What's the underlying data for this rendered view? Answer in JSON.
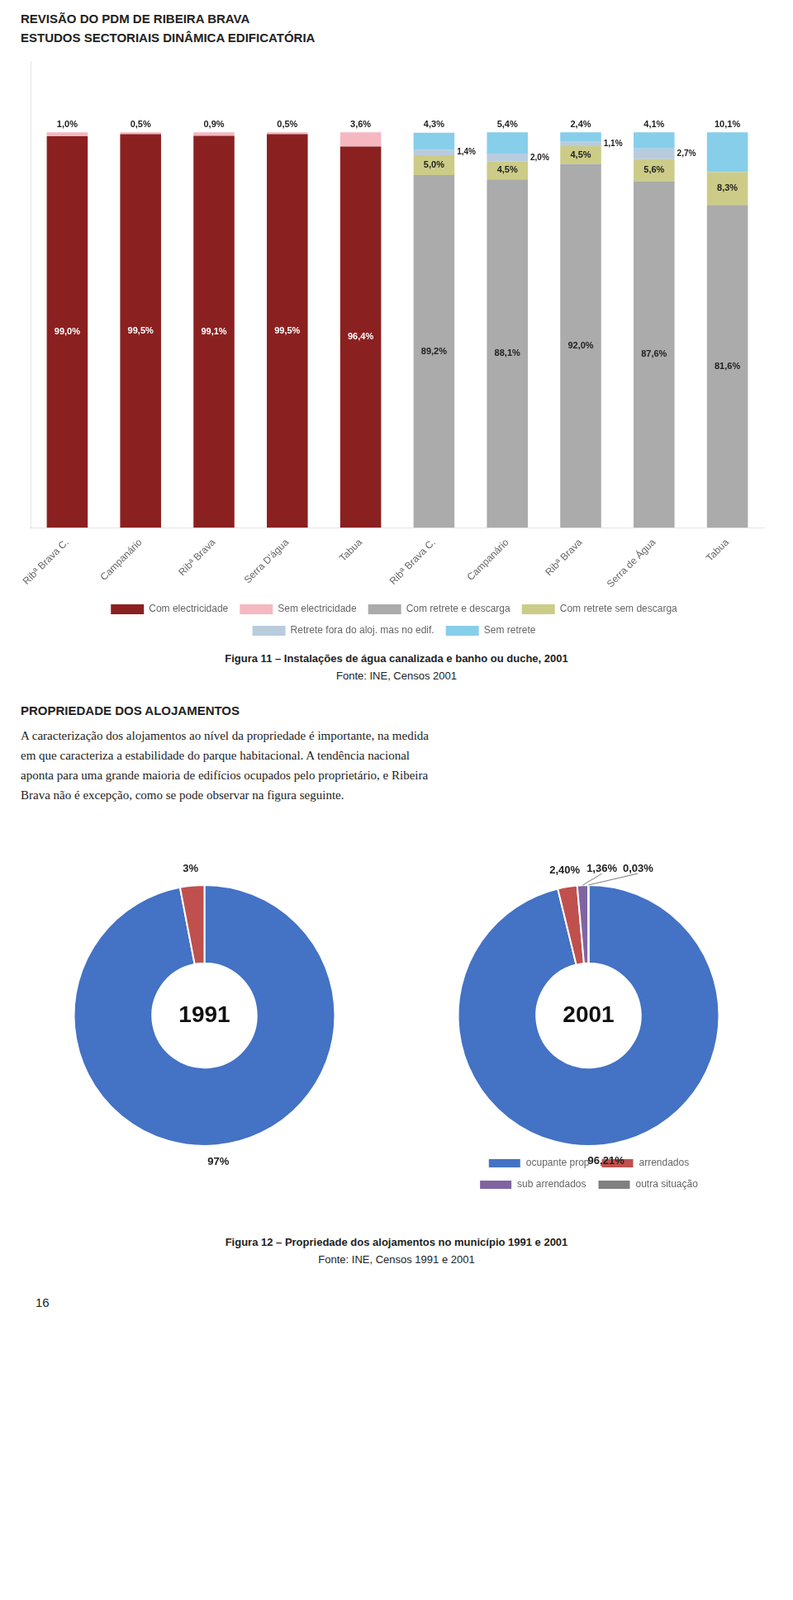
{
  "title": "REVISÃO DO PDM DE RIBEIRA BRAVA",
  "subtitle": "ESTUDOS SECTORIAIS DINÂMICA EDIFICATÓRIA",
  "annotations": [
    "PROPRIEDADE DOS ALOJAMENTOS",
    "A caracterização dos alojamentos ao nível da propriedade é importante, na medida",
    "em que caracteriza a estabilidade do parque habitacional. A tendência nacional",
    "aponta para uma grande maioria de edifícios ocupados pelo proprietário, e Ribeira",
    "Brava não é excepção, como se pode observar na figura seguinte.",
    "16"
  ],
  "chart_data": [
    {
      "type": "bar",
      "title": "Figura 11 – Instalações de água canalizada e banho ou duche, 2001",
      "subtitle": "Fonte: INE, Censos 2001",
      "categories": [
        "Ribª Brava C.",
        "Campanário",
        "Ribª Brava",
        "Serra D'água",
        "Tabua",
        "Ribª Brava C.",
        "Campanário",
        "Ribª Brava",
        "Serra de Água",
        "Tabua"
      ],
      "series": [
        {
          "name": "Com electricidade",
          "color": "#8B2020",
          "values": [
            99.0,
            99.5,
            99.1,
            99.5,
            96.4,
            null,
            null,
            null,
            null,
            null
          ],
          "value_labels": [
            "99,0%",
            "99,5%",
            "99,1%",
            "99,5%",
            "96,4%",
            null,
            null,
            null,
            null,
            null
          ]
        },
        {
          "name": "Sem electricidade",
          "color": "#F5B8C0",
          "values": [
            1.0,
            0.5,
            0.9,
            0.5,
            3.6,
            null,
            null,
            null,
            null,
            null
          ],
          "value_labels": [
            "1,0%",
            "0,5%",
            "0,9%",
            "0,5%",
            "3,6%",
            null,
            null,
            null,
            null,
            null
          ]
        },
        {
          "name": "Com retrete e descarga",
          "color": "#ABABAB",
          "values": [
            null,
            null,
            null,
            null,
            null,
            89.2,
            88.1,
            92.0,
            87.6,
            81.6
          ],
          "value_labels": [
            null,
            null,
            null,
            null,
            null,
            "89,2%",
            "88,1%",
            "92,0%",
            "87,6%",
            "81,6%"
          ]
        },
        {
          "name": "Com retrete sem descarga",
          "color": "#CCCC88",
          "values": [
            null,
            null,
            null,
            null,
            null,
            5.0,
            4.5,
            4.5,
            5.6,
            8.3
          ],
          "value_labels": [
            null,
            null,
            null,
            null,
            null,
            "5,0%",
            "4,5%",
            "4,5%",
            "5,6%",
            "8,3%"
          ]
        },
        {
          "name": "Retrete fora do aloj. mas no edif.",
          "color": "#B8CCDD",
          "values": [
            null,
            null,
            null,
            null,
            null,
            1.4,
            2.0,
            1.1,
            2.7,
            0.0
          ],
          "value_labels": [
            null,
            null,
            null,
            null,
            null,
            "1,4%",
            "2,0%",
            "1,1%",
            "2,7%",
            null
          ]
        },
        {
          "name": "Sem retrete",
          "color": "#87CEEB",
          "values": [
            null,
            null,
            null,
            null,
            null,
            4.3,
            5.4,
            2.4,
            4.1,
            10.1
          ],
          "value_labels": [
            null,
            null,
            null,
            null,
            null,
            "4,3%",
            "5,4%",
            "2,4%",
            "4,1%",
            "10,1%"
          ]
        }
      ],
      "stacked": true,
      "data_labels": true,
      "legend": "bottom",
      "grid": false,
      "tick_labels": "x",
      "ylim": [
        0,
        118
      ],
      "yticks": []
    },
    {
      "type": "doughnut",
      "title": "1991",
      "categories": [
        "ocupante prop",
        "arrendados"
      ],
      "values": [
        97.0,
        3.0
      ],
      "value_labels": [
        "97%",
        "3%"
      ],
      "colors": [
        "#4472C4",
        "#C0504D"
      ],
      "data_labels": true
    },
    {
      "type": "doughnut",
      "title": "2001",
      "categories": [
        "ocupante prop",
        "arrendados",
        "sub arrendados",
        "outra situação"
      ],
      "values": [
        96.21,
        2.4,
        1.36,
        0.03
      ],
      "value_labels": [
        "96,21%",
        "2,40%",
        "1,36%",
        "0,03%"
      ],
      "colors": [
        "#4472C4",
        "#C0504D",
        "#8064A2",
        "#808080"
      ],
      "data_labels": true,
      "legend": "bottom",
      "annotations": [
        "Figura 12 – Propriedade dos alojamentos no município 1991 e 2001",
        "Fonte: INE, Censos 1991 e 2001"
      ]
    }
  ]
}
